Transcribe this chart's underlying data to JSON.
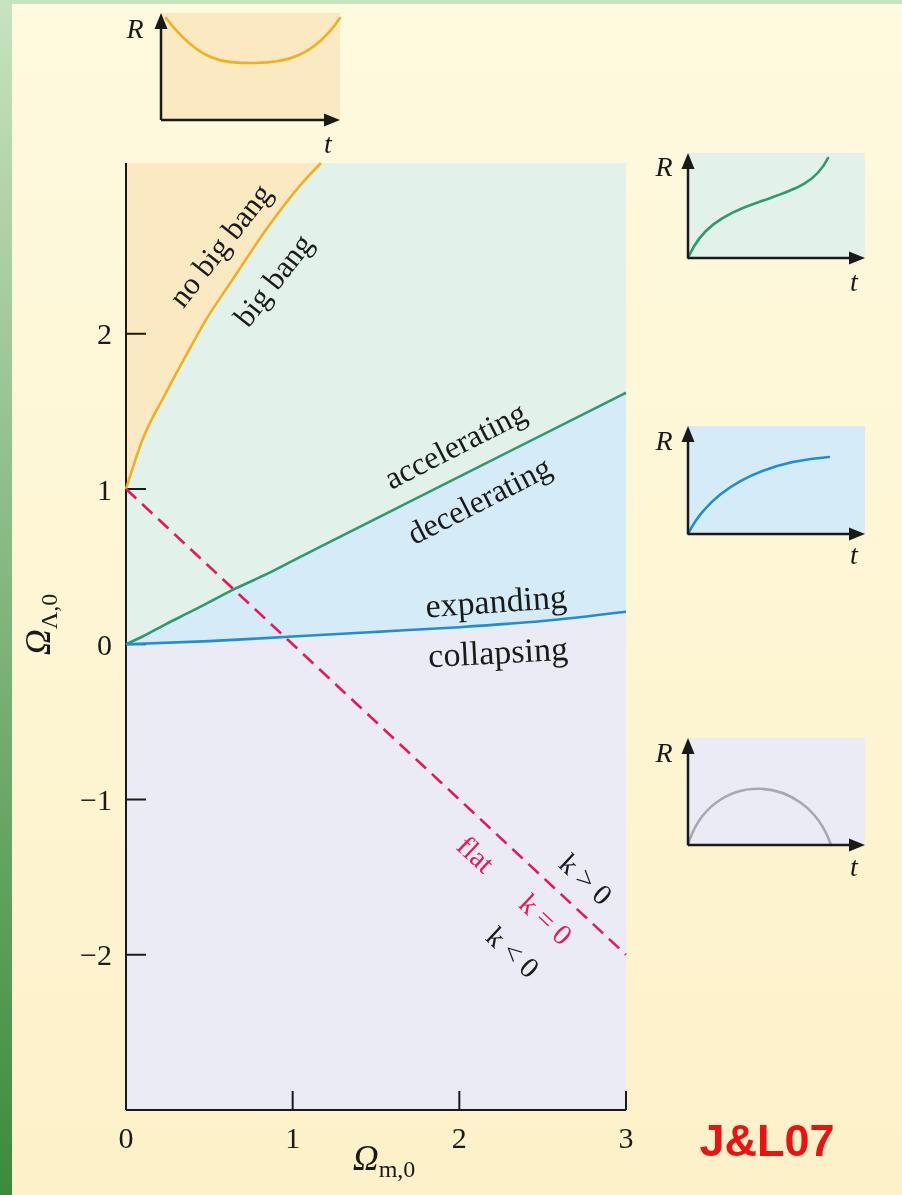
{
  "chart_data": {
    "type": "line",
    "xlabel": "Ω$_{m,0}$",
    "ylabel": "Ω$_{Λ,0}$",
    "xlim": [
      0,
      3
    ],
    "ylim": [
      -3,
      3.1
    ],
    "xticks": [
      0,
      1,
      2,
      3
    ],
    "yticks": [
      -2,
      -1,
      0,
      1,
      2
    ],
    "series": [
      {
        "color": "#f0b020",
        "x": [
          0,
          0.1,
          0.24,
          0.37,
          0.48,
          0.64,
          0.84,
          1.04,
          1.17
        ],
        "values": [
          1,
          1.32,
          1.62,
          1.88,
          2.09,
          2.35,
          2.67,
          2.95,
          3.1
        ],
        "lower": [
          1,
          1.32,
          1.62,
          1.88,
          2.09,
          2.35,
          2.67,
          2.95,
          3.1
        ],
        "upper": [
          3.1,
          3.1,
          3.1,
          3.1,
          3.1,
          3.1,
          3.1,
          3.1,
          3.1
        ]
      },
      {
        "color": "#2e9b6b",
        "x": [
          0,
          0.1,
          0.24,
          0.37,
          0.48,
          0.64,
          0.84,
          1.04,
          1.17,
          2,
          3
        ],
        "values": [
          0,
          0.05,
          0.13,
          0.2,
          0.26,
          0.35,
          0.45,
          0.56,
          0.63,
          1.08,
          1.62
        ],
        "lower": [
          0,
          0.05,
          0.13,
          0.2,
          0.26,
          0.35,
          0.45,
          0.56,
          0.63,
          1.08,
          1.62
        ],
        "upper": [
          1,
          1.32,
          1.62,
          1.88,
          2.09,
          2.35,
          2.67,
          2.95,
          3.1,
          3.1,
          3.1
        ]
      },
      {
        "color": "#1d8ed8",
        "x": [
          0,
          0.5,
          1,
          1.5,
          2,
          2.5,
          3
        ],
        "values": [
          0,
          0.02,
          0.05,
          0.08,
          0.11,
          0.15,
          0.21
        ],
        "lower": [
          0,
          0.02,
          0.05,
          0.08,
          0.11,
          0.15,
          0.21
        ],
        "upper": [
          0,
          0.27,
          0.54,
          0.81,
          1.08,
          1.35,
          1.62
        ]
      },
      {
        "color": "#e31b5b",
        "x": [
          0,
          1,
          2,
          3
        ],
        "values": [
          1,
          0,
          -1,
          -2
        ],
        "line_style": "dashed"
      }
    ],
    "annotations": [
      "no big bang",
      "big bang",
      "accelerating",
      "decelerating",
      "expanding",
      "collapsing",
      "flat",
      "k > 0",
      "k = 0",
      "k < 0",
      "R",
      "t",
      "R",
      "t",
      "R",
      "t",
      "R",
      "t",
      "J&L07"
    ]
  }
}
